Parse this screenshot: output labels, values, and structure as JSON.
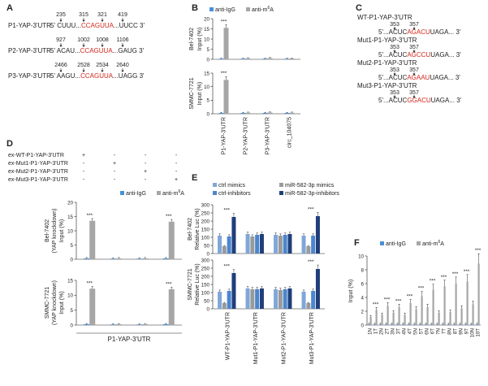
{
  "panels": {
    "A": {
      "letter": "A",
      "rows": [
        {
          "label": "P1-YAP-3'UTR",
          "nums": [
            "235",
            "315",
            "321",
            "419"
          ],
          "pre": "5' CUUU...",
          "motif": "CCAGUUA",
          "post": "...UUCC 3'"
        },
        {
          "label": "P2-YAP-3'UTR",
          "nums": [
            "927",
            "1002",
            "1008",
            "1106"
          ],
          "pre": "5' ACAU...",
          "motif": "CCAGUUA",
          "post": "...GAUG 3'"
        },
        {
          "label": "P3-YAP-3'UTR",
          "nums": [
            "2466",
            "2528",
            "2534",
            "2640"
          ],
          "pre": "5' AAGU...",
          "motif": "CCAGUUA",
          "post": "...UAGG 3'"
        }
      ]
    },
    "B": {
      "letter": "B",
      "legend": [
        "anti-IgG",
        "anti-m6A"
      ],
      "ylabel": "Input (%)",
      "charts": [
        {
          "cell": "Bel-7402",
          "ticks": [
            "0",
            "5",
            "10",
            "15",
            "20"
          ]
        },
        {
          "cell": "SMMC-7721",
          "ticks": [
            "0",
            "5",
            "10",
            "15"
          ]
        }
      ],
      "categories": [
        "P1-YAP-3'UTR",
        "P2-YAP-3'UTR",
        "P3-YAP-3'UTR",
        "circ_104075"
      ],
      "sig": "***"
    },
    "C": {
      "letter": "C",
      "constructs": [
        {
          "name": "WT-P1-YAP-3'UTR",
          "n1": "353",
          "n2": "357",
          "pre": "5'...ACUC",
          "motif": "AGACU",
          "post": "UAGA... 3'"
        },
        {
          "name": "Mut1-P1-YAP-3'UTR",
          "n1": "353",
          "n2": "357",
          "pre": "5'...ACUC",
          "motif": "AGCCU",
          "post": "UAGA... 3'"
        },
        {
          "name": "Mut2-P1-YAP-3'UTR",
          "n1": "353",
          "n2": "357",
          "pre": "5'...ACUC",
          "motif": "AGAAU",
          "post": "UAGA... 3'"
        },
        {
          "name": "Mut3-P1-YAP-3'UTR",
          "n1": "353",
          "n2": "357",
          "pre": "5'...ACUC",
          "motif": "GGACU",
          "post": "UAGA... 3'"
        }
      ]
    },
    "D": {
      "letter": "D",
      "rows": [
        "ex-WT-P1-YAP-3'UTR",
        "ex-Mut1-P1-YAP-3'UTR",
        "ex-Mut2-P1-YAP-3'UTR",
        "ex-Mut3-P1-YAP-3'UTR"
      ],
      "matrix": [
        [
          "+",
          "-",
          "-",
          "-"
        ],
        [
          "-",
          "+",
          "-",
          "-"
        ],
        [
          "-",
          "-",
          "+",
          "-"
        ],
        [
          "-",
          "-",
          "-",
          "+"
        ]
      ],
      "legend": [
        "anti-IgG",
        "anti-m6A"
      ],
      "charts": [
        {
          "cell": "Bel-7402",
          "sub": "(YAP knockdown)",
          "ylabel": "Input (%)",
          "ticks": [
            "0",
            "5",
            "10",
            "15",
            "20"
          ]
        },
        {
          "cell": "SMMC-7721",
          "sub": "(YAP knockdown)",
          "ylabel": "Input (%)",
          "ticks": [
            "0",
            "5",
            "10",
            "15"
          ]
        }
      ],
      "xlabel": "P1-YAP-3'UTR",
      "sig": "***"
    },
    "E": {
      "letter": "E",
      "legend": [
        "ctrl mimics",
        "miR-582-3p mimics",
        "ctrl-inhibitors",
        "miR-582-3p-inhibitors"
      ],
      "charts": [
        {
          "cell": "Bel-7402",
          "ylabel": "Relative Luc (%)",
          "ticks": [
            "0",
            "50",
            "100",
            "150",
            "200",
            "250",
            "300"
          ]
        },
        {
          "cell": "SMMC-7721",
          "ylabel": "Relative Luc (%)",
          "ticks": [
            "0",
            "50",
            "100",
            "150",
            "200",
            "250",
            "300"
          ]
        }
      ],
      "categories": [
        "WT-P1-YAP-3'UTR",
        "Mut1-P1-YAP-3'UTR",
        "Mut2-P1-YAP-3'UTR",
        "Mut3-P1-YAP-3'UTR"
      ],
      "sig": "***"
    },
    "F": {
      "letter": "F",
      "legend": [
        "anti-IgG",
        "anti-m6A"
      ],
      "ylabel": "Input (%)",
      "ticks": [
        "0",
        "2",
        "4",
        "6",
        "8",
        "10"
      ],
      "categories": [
        "1N",
        "1T",
        "2N",
        "2T",
        "3N",
        "3T",
        "4N",
        "4T",
        "5N",
        "5T",
        "6N",
        "6T",
        "7N",
        "7T",
        "8N",
        "8T",
        "9N",
        "9T",
        "10N",
        "10T"
      ],
      "sig": "***"
    }
  },
  "colors": {
    "igg": "#4a90d9",
    "m6a": "#a6a6a6",
    "e1": "#7fa7d8",
    "e2": "#9a9a9a",
    "e3": "#4b86cf",
    "e4": "#1f3f7a",
    "red": "#d4261c"
  },
  "chart_data": [
    {
      "type": "bar",
      "title": "B Bel-7402",
      "ylabel": "Input (%)",
      "ylim": [
        0,
        20
      ],
      "categories": [
        "P1-YAP-3'UTR",
        "P2-YAP-3'UTR",
        "P3-YAP-3'UTR",
        "circ_104075"
      ],
      "series": [
        {
          "name": "anti-IgG",
          "values": [
            0.3,
            0.3,
            0.3,
            0.3
          ]
        },
        {
          "name": "anti-m6A",
          "values": [
            15.5,
            0.5,
            0.6,
            0.4
          ]
        }
      ]
    },
    {
      "type": "bar",
      "title": "B SMMC-7721",
      "ylabel": "Input (%)",
      "ylim": [
        0,
        15
      ],
      "categories": [
        "P1-YAP-3'UTR",
        "P2-YAP-3'UTR",
        "P3-YAP-3'UTR",
        "circ_104075"
      ],
      "series": [
        {
          "name": "anti-IgG",
          "values": [
            0.3,
            0.3,
            0.3,
            0.3
          ]
        },
        {
          "name": "anti-m6A",
          "values": [
            12.5,
            0.4,
            0.5,
            0.4
          ]
        }
      ]
    },
    {
      "type": "bar",
      "title": "D Bel-7402",
      "ylabel": "Input (%)",
      "ylim": [
        0,
        20
      ],
      "categories": [
        "WT",
        "Mut1",
        "Mut2",
        "Mut3"
      ],
      "series": [
        {
          "name": "anti-IgG",
          "values": [
            0.3,
            0.2,
            0.2,
            0.3
          ]
        },
        {
          "name": "anti-m6A",
          "values": [
            13.5,
            0.3,
            0.3,
            13.2
          ]
        }
      ]
    },
    {
      "type": "bar",
      "title": "D SMMC-7721",
      "ylabel": "Input (%)",
      "ylim": [
        0,
        15
      ],
      "categories": [
        "WT",
        "Mut1",
        "Mut2",
        "Mut3"
      ],
      "series": [
        {
          "name": "anti-IgG",
          "values": [
            0.3,
            0.2,
            0.2,
            0.3
          ]
        },
        {
          "name": "anti-m6A",
          "values": [
            12.2,
            0.3,
            0.3,
            12.0
          ]
        }
      ]
    },
    {
      "type": "bar",
      "title": "E Bel-7402",
      "ylabel": "Relative Luc (%)",
      "ylim": [
        0,
        300
      ],
      "categories": [
        "WT-P1-YAP-3'UTR",
        "Mut1-P1-YAP-3'UTR",
        "Mut2-P1-YAP-3'UTR",
        "Mut3-P1-YAP-3'UTR"
      ],
      "series": [
        {
          "name": "ctrl mimics",
          "values": [
            110,
            120,
            115,
            110
          ]
        },
        {
          "name": "miR-582-3p mimics",
          "values": [
            45,
            105,
            110,
            45
          ]
        },
        {
          "name": "ctrl-inhibitors",
          "values": [
            105,
            115,
            115,
            110
          ]
        },
        {
          "name": "miR-582-3p-inhibitors",
          "values": [
            225,
            120,
            120,
            230
          ]
        }
      ]
    },
    {
      "type": "bar",
      "title": "E SMMC-7721",
      "ylabel": "Relative Luc (%)",
      "ylim": [
        0,
        300
      ],
      "categories": [
        "WT-P1-YAP-3'UTR",
        "Mut1-P1-YAP-3'UTR",
        "Mut2-P1-YAP-3'UTR",
        "Mut3-P1-YAP-3'UTR"
      ],
      "series": [
        {
          "name": "ctrl mimics",
          "values": [
            105,
            125,
            120,
            105
          ]
        },
        {
          "name": "miR-582-3p mimics",
          "values": [
            35,
            120,
            115,
            35
          ]
        },
        {
          "name": "ctrl-inhibitors",
          "values": [
            110,
            120,
            120,
            110
          ]
        },
        {
          "name": "miR-582-3p-inhibitors",
          "values": [
            220,
            125,
            125,
            245
          ]
        }
      ]
    },
    {
      "type": "bar",
      "title": "F",
      "ylabel": "Input (%)",
      "ylim": [
        0,
        10
      ],
      "categories": [
        "1N",
        "1T",
        "2N",
        "2T",
        "3N",
        "3T",
        "4N",
        "4T",
        "5N",
        "5T",
        "6N",
        "6T",
        "7N",
        "7T",
        "8N",
        "8T",
        "9N",
        "9T",
        "10N",
        "10T"
      ],
      "series": [
        {
          "name": "anti-IgG",
          "values": [
            0.1,
            0.1,
            0.1,
            0.1,
            0.1,
            0.1,
            0.1,
            0.1,
            0.1,
            0.1,
            0.1,
            0.1,
            0.1,
            0.1,
            0.1,
            0.1,
            0.1,
            0.1,
            0.1,
            0.1
          ]
        },
        {
          "name": "anti-m6A",
          "values": [
            1.2,
            2.2,
            1.5,
            2.8,
            1.8,
            2.6,
            1.5,
            3.2,
            2.3,
            4.2,
            2.6,
            5.1,
            1.8,
            5.6,
            1.9,
            6.0,
            2.4,
            6.3,
            3.0,
            8.9
          ]
        }
      ]
    }
  ]
}
